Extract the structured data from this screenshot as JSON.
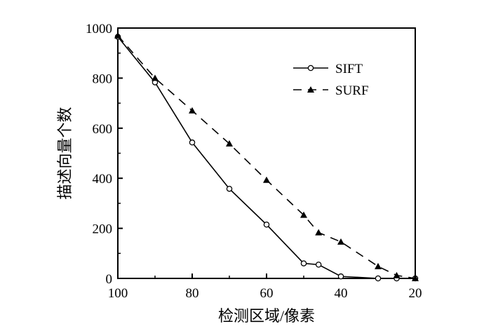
{
  "chart_data": {
    "type": "line",
    "xlabel": "检测区域/像素",
    "ylabel": "描述向量个数",
    "xlim": [
      100,
      20
    ],
    "ylim": [
      0,
      1000
    ],
    "x_ticks": [
      100,
      80,
      60,
      40,
      20
    ],
    "y_ticks": [
      0,
      200,
      400,
      600,
      800,
      1000
    ],
    "grid": false,
    "legend_position": "top-right",
    "series": [
      {
        "name": "SIFT",
        "marker": "open-circle",
        "line_style": "solid",
        "color": "#000000",
        "points": [
          [
            100,
            965
          ],
          [
            90,
            783
          ],
          [
            80,
            543
          ],
          [
            70,
            358
          ],
          [
            60,
            215
          ],
          [
            50,
            60
          ],
          [
            46,
            55
          ],
          [
            40,
            8
          ],
          [
            30,
            0
          ],
          [
            25,
            0
          ],
          [
            20,
            0
          ]
        ]
      },
      {
        "name": "SURF",
        "marker": "filled-triangle",
        "line_style": "dashed",
        "color": "#000000",
        "points": [
          [
            100,
            970
          ],
          [
            90,
            800
          ],
          [
            80,
            670
          ],
          [
            70,
            538
          ],
          [
            60,
            393
          ],
          [
            50,
            253
          ],
          [
            46,
            183
          ],
          [
            40,
            146
          ],
          [
            30,
            48
          ],
          [
            25,
            12
          ],
          [
            20,
            0
          ]
        ]
      }
    ]
  }
}
